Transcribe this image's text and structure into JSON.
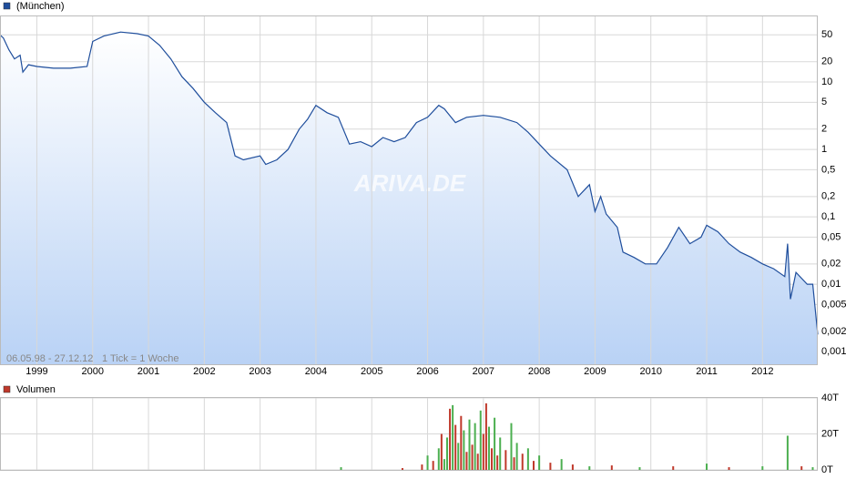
{
  "chart_data": [
    {
      "type": "line",
      "legend": "(München)",
      "color": "#1f4e9c",
      "log_scale": true,
      "grid": true,
      "watermark": "ARIVA.DE",
      "range_note": "06.05.98 - 27.12.12",
      "tick_note": "1 Tick = 1 Woche",
      "x": [
        1998.34,
        1998.4,
        1998.5,
        1998.6,
        1998.7,
        1998.75,
        1998.85,
        1999.0,
        1999.3,
        1999.6,
        1999.9,
        2000.0,
        2000.2,
        2000.5,
        2000.8,
        2001.0,
        2001.2,
        2001.4,
        2001.6,
        2001.8,
        2002.0,
        2002.2,
        2002.4,
        2002.55,
        2002.7,
        2003.0,
        2003.1,
        2003.3,
        2003.5,
        2003.7,
        2003.85,
        2004.0,
        2004.2,
        2004.4,
        2004.6,
        2004.8,
        2005.0,
        2005.2,
        2005.4,
        2005.6,
        2005.8,
        2006.0,
        2006.2,
        2006.3,
        2006.5,
        2006.7,
        2007.0,
        2007.3,
        2007.6,
        2007.8,
        2008.0,
        2008.2,
        2008.5,
        2008.7,
        2008.9,
        2009.0,
        2009.1,
        2009.2,
        2009.4,
        2009.5,
        2009.7,
        2009.9,
        2010.1,
        2010.3,
        2010.5,
        2010.7,
        2010.9,
        2011.0,
        2011.2,
        2011.4,
        2011.6,
        2011.8,
        2012.0,
        2012.2,
        2012.4,
        2012.45,
        2012.5,
        2012.6,
        2012.8,
        2012.9,
        2012.99
      ],
      "values": [
        50,
        45,
        30,
        22,
        25,
        14,
        18,
        17,
        16,
        16,
        17,
        40,
        48,
        55,
        52,
        48,
        35,
        22,
        12,
        8,
        5,
        3.5,
        2.5,
        0.8,
        0.7,
        0.8,
        0.6,
        0.7,
        1.0,
        2,
        2.8,
        4.5,
        3.5,
        3,
        1.2,
        1.3,
        1.1,
        1.5,
        1.3,
        1.5,
        2.5,
        3,
        4.5,
        4,
        2.5,
        3,
        3.2,
        3,
        2.5,
        1.8,
        1.2,
        0.8,
        0.5,
        0.2,
        0.3,
        0.12,
        0.2,
        0.11,
        0.07,
        0.03,
        0.025,
        0.02,
        0.02,
        0.035,
        0.07,
        0.04,
        0.05,
        0.075,
        0.06,
        0.04,
        0.03,
        0.025,
        0.02,
        0.017,
        0.013,
        0.04,
        0.006,
        0.015,
        0.01,
        0.01,
        0.0018
      ],
      "xlim": [
        1998.34,
        2012.99
      ],
      "xticks": [
        1999,
        2000,
        2001,
        2002,
        2003,
        2004,
        2005,
        2006,
        2007,
        2008,
        2009,
        2010,
        2011,
        2012
      ],
      "ylim": [
        0.00065,
        97
      ],
      "yticks": [
        50,
        20,
        10,
        5,
        2,
        1,
        {
          "value": 0.5,
          "label": "0,5"
        },
        {
          "value": 0.2,
          "label": "0,2"
        },
        {
          "value": 0.1,
          "label": "0,1"
        },
        {
          "value": 0.05,
          "label": "0,05"
        },
        {
          "value": 0.02,
          "label": "0,02"
        },
        {
          "value": 0.01,
          "label": "0,01"
        },
        {
          "value": 0.005,
          "label": "0,005"
        },
        {
          "value": 0.002,
          "label": "0,002"
        },
        {
          "value": 0.001,
          "label": "0,001"
        }
      ]
    },
    {
      "type": "bar",
      "legend": "Volumen",
      "color": "#c0392b",
      "grid": true,
      "x": [
        2004.45,
        2005.55,
        2005.9,
        2006.0,
        2006.1,
        2006.2,
        2006.25,
        2006.3,
        2006.35,
        2006.4,
        2006.45,
        2006.5,
        2006.55,
        2006.6,
        2006.65,
        2006.7,
        2006.75,
        2006.8,
        2006.85,
        2006.9,
        2006.95,
        2007.0,
        2007.05,
        2007.1,
        2007.15,
        2007.2,
        2007.25,
        2007.3,
        2007.4,
        2007.5,
        2007.55,
        2007.6,
        2007.7,
        2007.8,
        2007.9,
        2008.0,
        2008.2,
        2008.4,
        2008.6,
        2008.9,
        2009.3,
        2009.8,
        2010.4,
        2011.0,
        2011.4,
        2012.0,
        2012.45,
        2012.7,
        2012.9
      ],
      "values": [
        1500,
        1000,
        3000,
        8000,
        5000,
        12000,
        20000,
        6000,
        18000,
        34000,
        36000,
        25000,
        15000,
        30000,
        22000,
        10000,
        28000,
        14000,
        26000,
        9000,
        33000,
        20000,
        37000,
        24000,
        12000,
        29000,
        8000,
        18000,
        11000,
        26000,
        7000,
        15000,
        9000,
        12000,
        5000,
        8000,
        4000,
        6000,
        3000,
        2000,
        2500,
        1500,
        2000,
        3500,
        1500,
        2000,
        19000,
        2000,
        1500
      ],
      "colors": [
        "#4caf50",
        "#c0392b",
        "#c0392b",
        "#4caf50",
        "#c0392b",
        "#4caf50",
        "#c0392b",
        "#4caf50",
        "#4caf50",
        "#c0392b",
        "#4caf50",
        "#c0392b",
        "#4caf50",
        "#c0392b",
        "#4caf50",
        "#c0392b",
        "#4caf50",
        "#c0392b",
        "#4caf50",
        "#c0392b",
        "#4caf50",
        "#c0392b",
        "#c0392b",
        "#4caf50",
        "#c0392b",
        "#4caf50",
        "#c0392b",
        "#4caf50",
        "#c0392b",
        "#4caf50",
        "#c0392b",
        "#4caf50",
        "#c0392b",
        "#4caf50",
        "#c0392b",
        "#4caf50",
        "#c0392b",
        "#4caf50",
        "#c0392b",
        "#4caf50",
        "#c0392b",
        "#4caf50",
        "#c0392b",
        "#4caf50",
        "#c0392b",
        "#4caf50",
        "#4caf50",
        "#c0392b",
        "#4caf50"
      ],
      "xlim": [
        1998.34,
        2012.99
      ],
      "ylim": [
        0,
        40500
      ],
      "yticks": [
        {
          "value": 40000,
          "label": "40T"
        },
        {
          "value": 20000,
          "label": "20T"
        },
        {
          "value": 0,
          "label": "0T"
        }
      ]
    }
  ]
}
